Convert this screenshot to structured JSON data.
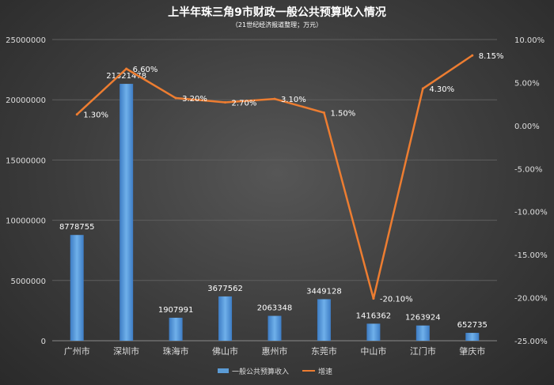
{
  "chart_data": {
    "type": "bar+line",
    "title": "上半年珠三角9市财政一般公共预算收入情况",
    "subtitle": "（21世纪经济报道整理；万元）",
    "categories": [
      "广州市",
      "深圳市",
      "珠海市",
      "佛山市",
      "惠州市",
      "东莞市",
      "中山市",
      "江门市",
      "肇庆市"
    ],
    "series": [
      {
        "name": "一般公共预算收入",
        "type": "bar",
        "axis": "left",
        "values": [
          8778755,
          21321478,
          1907991,
          3677562,
          2063348,
          3449128,
          1416362,
          1263924,
          652735
        ],
        "labels": [
          "8778755",
          "21321478",
          "1907991",
          "3677562",
          "2063348",
          "3449128",
          "1416362",
          "1263924",
          "652735"
        ],
        "color": "#5b9bd5"
      },
      {
        "name": "增速",
        "type": "line",
        "axis": "right",
        "values": [
          1.3,
          6.6,
          3.2,
          2.7,
          3.1,
          1.5,
          -20.1,
          4.3,
          8.15
        ],
        "labels": [
          "1.30%",
          "6.60%",
          "3.20%",
          "2.70%",
          "3.10%",
          "1.50%",
          "-20.10%",
          "4.30%",
          "8.15%"
        ],
        "color": "#ed7d31"
      }
    ],
    "y_left": {
      "lim": [
        0,
        25000000
      ],
      "ticks": [
        0,
        5000000,
        10000000,
        15000000,
        20000000,
        25000000
      ],
      "tick_labels": [
        "0",
        "5000000",
        "10000000",
        "15000000",
        "20000000",
        "25000000"
      ]
    },
    "y_right": {
      "lim": [
        -25,
        10
      ],
      "ticks": [
        10,
        5,
        0,
        -5,
        -10,
        -15,
        -20,
        -25
      ],
      "tick_labels": [
        "10.00%",
        "5.00%",
        "0.00%",
        "-5.00%",
        "-10.00%",
        "-15.00%",
        "-20.00%",
        "-25.00%"
      ]
    },
    "grid": true,
    "legend": "bottom"
  }
}
